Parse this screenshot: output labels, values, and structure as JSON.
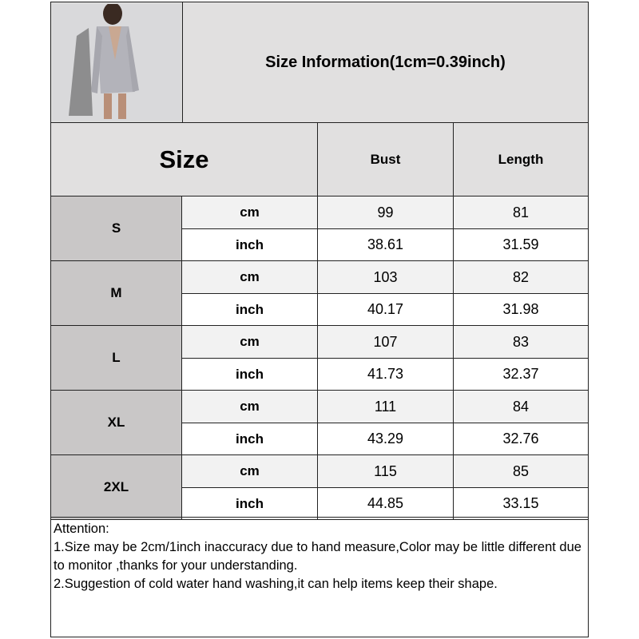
{
  "title": "Size Information(1cm=0.39inch)",
  "headers": {
    "size": "Size",
    "bust": "Bust",
    "length": "Length"
  },
  "rows": [
    {
      "size": "S",
      "cm_label": "cm",
      "inch_label": "inch",
      "bust_cm": "99",
      "length_cm": "81",
      "bust_inch": "38.61",
      "length_inch": "31.59"
    },
    {
      "size": "M",
      "cm_label": "cm",
      "inch_label": "inch",
      "bust_cm": "103",
      "length_cm": "82",
      "bust_inch": "40.17",
      "length_inch": "31.98"
    },
    {
      "size": "L",
      "cm_label": "cm",
      "inch_label": "inch",
      "bust_cm": "107",
      "length_cm": "83",
      "bust_inch": "41.73",
      "length_inch": "32.37"
    },
    {
      "size": "XL",
      "cm_label": "cm",
      "inch_label": "inch",
      "bust_cm": "111",
      "length_cm": "84",
      "bust_inch": "43.29",
      "length_inch": "32.76"
    },
    {
      "size": "2XL",
      "cm_label": "cm",
      "inch_label": "inch",
      "bust_cm": "115",
      "length_cm": "85",
      "bust_inch": "44.85",
      "length_inch": "33.15"
    }
  ],
  "notes": {
    "heading": "Attention:",
    "line1": "1.Size may be 2cm/1inch inaccuracy due to hand measure,Color may be little different due to monitor ,thanks for your understanding.",
    "line2": "2.Suggestion of cold water hand washing,it can help items keep their shape."
  },
  "colors": {
    "header_bg": "#e1e0e0",
    "size_col_bg": "#c9c7c7",
    "cm_row_bg": "#f2f2f2",
    "inch_row_bg": "#ffffff"
  }
}
